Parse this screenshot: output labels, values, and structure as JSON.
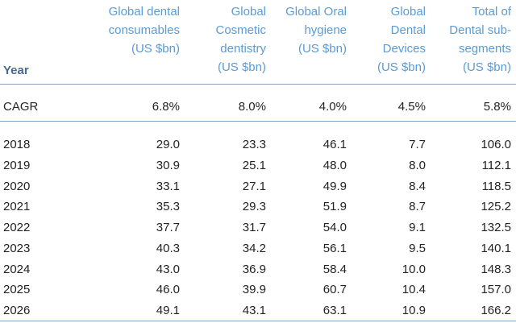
{
  "table": {
    "header": {
      "year": "Year",
      "columns": [
        [
          "Global dental",
          "consumables",
          "(US $bn)"
        ],
        [
          "Global",
          "Cosmetic",
          "dentistry",
          "(US $bn)"
        ],
        [
          "Global Oral",
          "hygiene",
          "(US $bn)"
        ],
        [
          "Global",
          "Dental",
          "Devices",
          "(US $bn)"
        ],
        [
          "Total of",
          "Dental sub-",
          "segments",
          "(US $bn)"
        ]
      ]
    },
    "cagr": [
      "CAGR",
      "6.8%",
      "8.0%",
      "4.0%",
      "4.5%",
      "5.8%"
    ],
    "rows": [
      [
        "2018",
        "29.0",
        "23.3",
        "46.1",
        "7.7",
        "106.0"
      ],
      [
        "2019",
        "30.9",
        "25.1",
        "48.0",
        "8.0",
        "112.1"
      ],
      [
        "2020",
        "33.1",
        "27.1",
        "49.9",
        "8.4",
        "118.5"
      ],
      [
        "2021",
        "35.3",
        "29.3",
        "51.9",
        "8.7",
        "125.2"
      ],
      [
        "2022",
        "37.7",
        "31.7",
        "54.0",
        "9.1",
        "132.5"
      ],
      [
        "2023",
        "40.3",
        "34.2",
        "56.1",
        "9.5",
        "140.1"
      ],
      [
        "2024",
        "43.0",
        "36.9",
        "58.4",
        "10.0",
        "148.3"
      ],
      [
        "2025",
        "46.0",
        "39.9",
        "60.7",
        "10.4",
        "157.0"
      ],
      [
        "2026",
        "49.1",
        "43.1",
        "63.1",
        "10.9",
        "166.2"
      ]
    ]
  }
}
